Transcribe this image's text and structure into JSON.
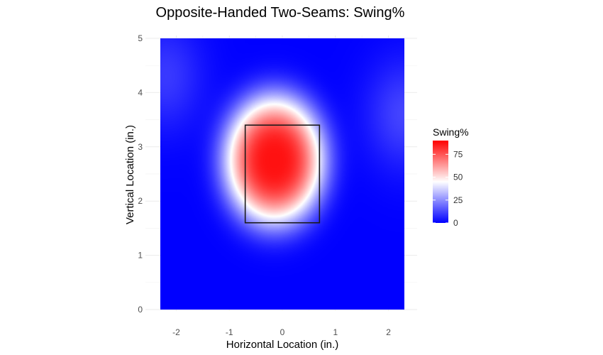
{
  "chart_data": {
    "type": "heatmap",
    "title": "Opposite-Handed Two-Seams: Swing%",
    "xlabel": "Horizontal Location (in.)",
    "ylabel": "Vertical Location (in.)",
    "xlim": [
      -2.3,
      2.3
    ],
    "ylim": [
      0,
      5
    ],
    "x_ticks": [
      -2,
      -1,
      0,
      1,
      2
    ],
    "y_ticks": [
      0,
      1,
      2,
      3,
      4,
      5
    ],
    "grid": true,
    "legend": {
      "title": "Swing%",
      "position": "right",
      "ticks": [
        0,
        25,
        50,
        75
      ],
      "range": [
        0,
        90
      ],
      "colors": {
        "low": "#0000ff",
        "mid": "#ffffff",
        "high": "#ff0000",
        "midpoint": 45
      }
    },
    "strike_zone": {
      "x": [
        -0.7,
        0.7
      ],
      "y": [
        1.6,
        3.4
      ]
    },
    "surface": {
      "peak": {
        "x": -0.15,
        "y": 2.75,
        "value": 87
      },
      "spread_x": 0.75,
      "spread_y": 0.95,
      "baseline": 0,
      "side_lobes": [
        {
          "x": -2.2,
          "y": 4.3,
          "value": 10
        },
        {
          "x": 2.3,
          "y": 3.6,
          "value": 12
        }
      ]
    }
  }
}
